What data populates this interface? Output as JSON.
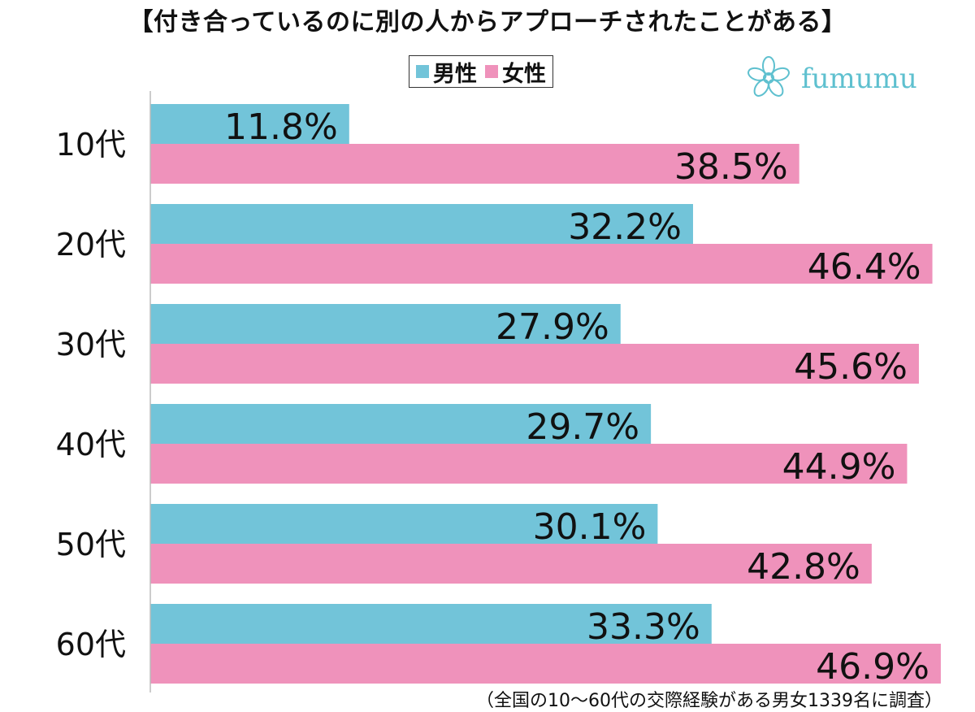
{
  "title": "【付き合っているのに別の人からアプローチされたことがある】",
  "brand": {
    "name": "fumumu",
    "icon": "flower-logo-icon"
  },
  "colors": {
    "male": "#72c4d9",
    "female": "#ef92bb",
    "brand": "#5ec0cf"
  },
  "footnote": "（全国の10〜60代の交際経験がある男女1339名に調査）",
  "chart_data": {
    "type": "bar",
    "orientation": "horizontal",
    "categories": [
      "10代",
      "20代",
      "30代",
      "40代",
      "50代",
      "60代"
    ],
    "series": [
      {
        "name": "男性",
        "values": [
          11.8,
          32.2,
          27.9,
          29.7,
          30.1,
          33.3
        ],
        "labels": [
          "11.8%",
          "32.2%",
          "27.9%",
          "29.7%",
          "30.1%",
          "33.3%"
        ]
      },
      {
        "name": "女性",
        "values": [
          38.5,
          46.4,
          45.6,
          44.9,
          42.8,
          46.9
        ],
        "labels": [
          "38.5%",
          "46.4%",
          "45.6%",
          "44.9%",
          "42.8%",
          "46.9%"
        ]
      }
    ],
    "xlim": [
      0,
      47
    ],
    "legend": "top",
    "grid": false
  }
}
